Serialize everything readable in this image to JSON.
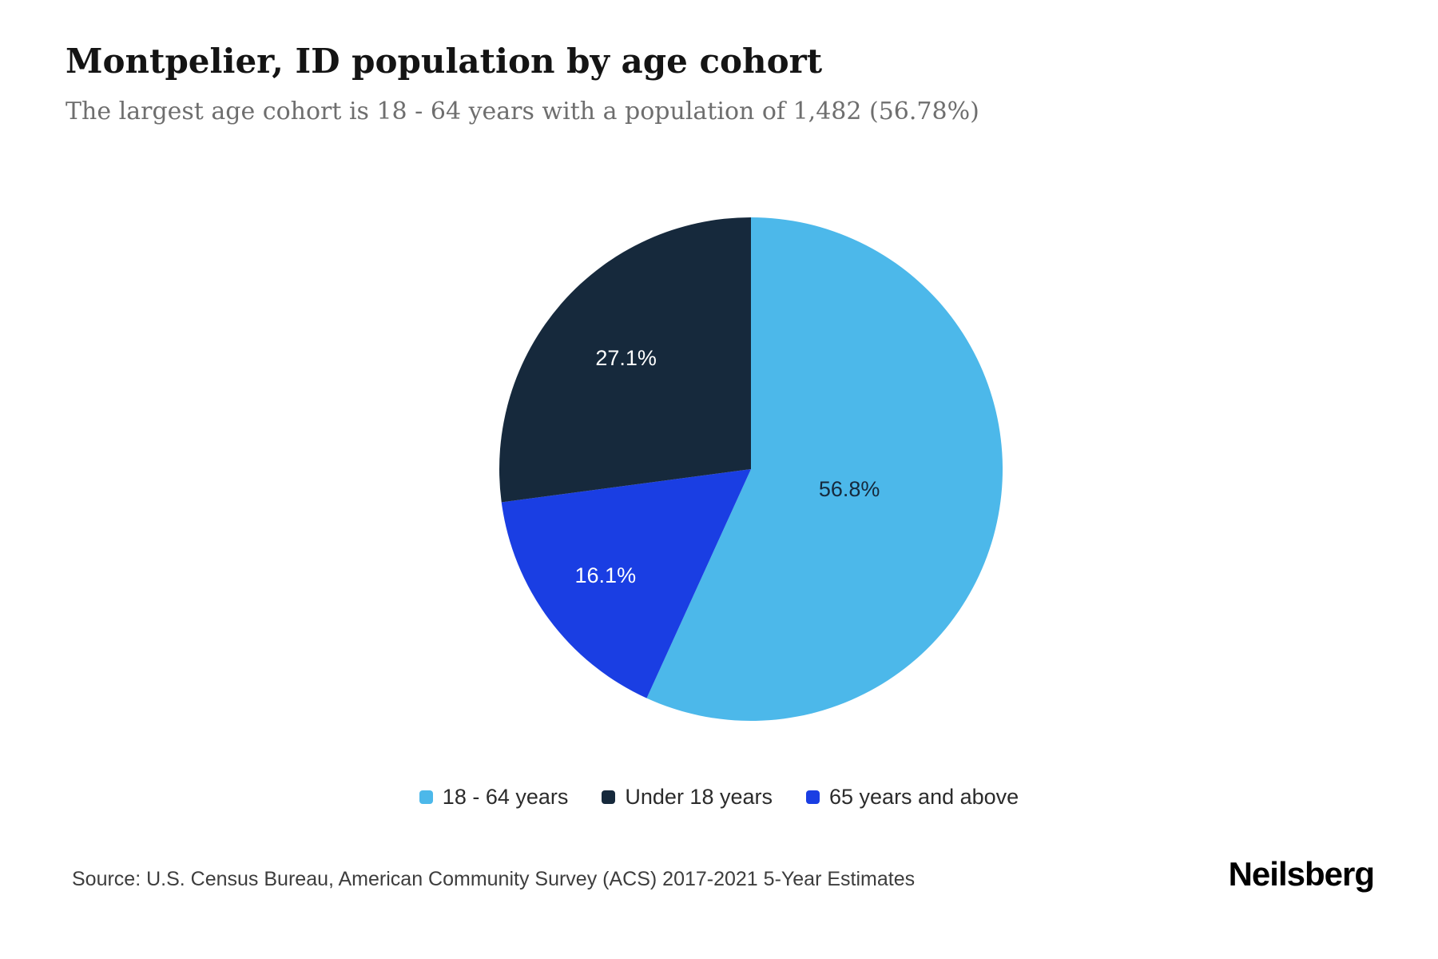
{
  "header": {
    "title": "Montpelier, ID population by age cohort",
    "subtitle": "The largest age cohort is 18 - 64 years with a population of 1,482 (56.78%)"
  },
  "chart_data": {
    "type": "pie",
    "title": "Montpelier, ID population by age cohort",
    "start_angle": 0,
    "direction": "clockwise",
    "slices": [
      {
        "label": "18 - 64 years",
        "value": 56.8,
        "display": "56.8%",
        "color": "#4cb8ea",
        "label_color": "#16293c"
      },
      {
        "label": "65 years and above",
        "value": 16.1,
        "display": "16.1%",
        "color": "#1a3ee3",
        "label_color": "#ffffff"
      },
      {
        "label": "Under 18 years",
        "value": 27.1,
        "display": "27.1%",
        "color": "#16293c",
        "label_color": "#ffffff"
      }
    ],
    "legend_position": "bottom",
    "largest_cohort": {
      "label": "18 - 64 years",
      "population": "1,482",
      "percent": "56.78%"
    }
  },
  "legend": {
    "items": [
      {
        "label": "18 - 64 years",
        "color": "#4cb8ea"
      },
      {
        "label": "Under 18 years",
        "color": "#16293c"
      },
      {
        "label": "65 years and above",
        "color": "#1a3ee3"
      }
    ]
  },
  "footer": {
    "source": "Source: U.S. Census Bureau, American Community Survey (ACS) 2017-2021 5-Year Estimates",
    "brand": "Neilsberg"
  }
}
